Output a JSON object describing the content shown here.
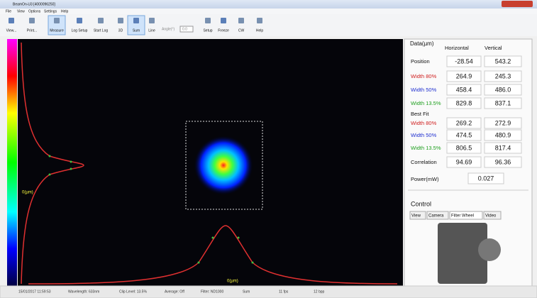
{
  "window": {
    "title": "BeamOn-U3 [4000096250]"
  },
  "menu": [
    "File",
    "View",
    "Options",
    "Settings",
    "Help"
  ],
  "toolbar": [
    "View...",
    "Print...",
    "Measure",
    "Log Setup",
    "Start Log",
    "3D",
    "Sum",
    "Line",
    "Setup",
    "Freeze",
    "CW",
    "Help"
  ],
  "angle": {
    "label": "Angle(°)",
    "value": "0.0"
  },
  "image": {
    "v_axis_label": "0(µm)",
    "h_axis_label": "0(µm)"
  },
  "data_panel": {
    "title": "Data(µm)",
    "columns": [
      "Horizontal",
      "Vertical"
    ],
    "rows": [
      {
        "label": "Position",
        "horizontal": "-28.54",
        "vertical": "543.2"
      },
      {
        "label": "Width 80%",
        "horizontal": "264.9",
        "vertical": "245.3"
      },
      {
        "label": "Width 50%",
        "horizontal": "458.4",
        "vertical": "486.0"
      },
      {
        "label": "Width 13.5%",
        "horizontal": "829.8",
        "vertical": "837.1"
      }
    ],
    "best_fit_label": "Best Fit",
    "best_fit_rows": [
      {
        "label": "Width 80%",
        "horizontal": "269.2",
        "vertical": "272.9"
      },
      {
        "label": "Width 50%",
        "horizontal": "474.5",
        "vertical": "480.9"
      },
      {
        "label": "Width 13.5%",
        "horizontal": "806.5",
        "vertical": "817.4"
      },
      {
        "label": "Correlation",
        "horizontal": "94.69",
        "vertical": "96.36"
      }
    ],
    "power": {
      "label": "Power(mW)",
      "value": "0.027"
    }
  },
  "control": {
    "title": "Control",
    "tabs": [
      "View",
      "Camera",
      "Filter Wheel",
      "Video"
    ]
  },
  "status_bar": [
    "15/01/2017 11:59:53",
    "Wavelength: 633nm",
    "Clip Level: 13.5%",
    "Average: Off",
    "Filter: ND1000",
    "Sum",
    "11 fps",
    "12 bpp"
  ]
}
